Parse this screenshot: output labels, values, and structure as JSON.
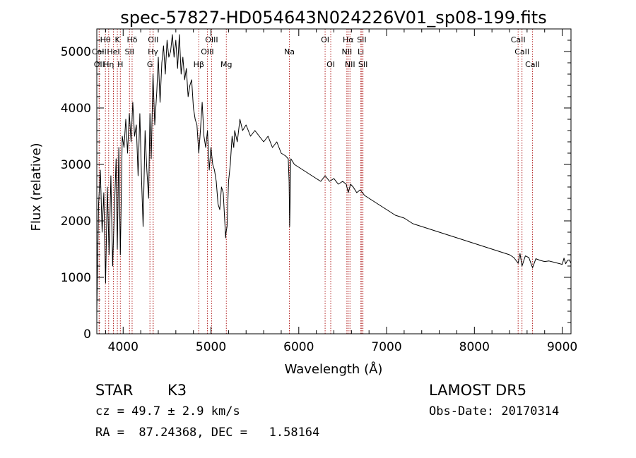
{
  "chart_data": {
    "type": "line",
    "title": "spec-57827-HD054643N024226V01_sp08-199.fits",
    "xlabel": "Wavelength (Å)",
    "ylabel": "Flux (relative)",
    "xlim": [
      3700,
      9100
    ],
    "ylim": [
      0,
      5400
    ],
    "xticks": [
      4000,
      5000,
      6000,
      7000,
      8000,
      9000
    ],
    "yticks": [
      0,
      1000,
      2000,
      3000,
      4000,
      5000
    ],
    "grid": false,
    "series": [
      {
        "x": [
          3700,
          3720,
          3740,
          3760,
          3780,
          3800,
          3820,
          3840,
          3860,
          3880,
          3900,
          3920,
          3933,
          3950,
          3968,
          3990,
          4010,
          4030,
          4050,
          4070,
          4090,
          4110,
          4130,
          4150,
          4170,
          4190,
          4210,
          4227,
          4250,
          4270,
          4290,
          4305,
          4320,
          4340,
          4360,
          4383,
          4400,
          4420,
          4440,
          4460,
          4480,
          4500,
          4520,
          4540,
          4560,
          4580,
          4600,
          4620,
          4640,
          4660,
          4680,
          4700,
          4720,
          4740,
          4760,
          4780,
          4800,
          4820,
          4840,
          4861,
          4880,
          4900,
          4920,
          4940,
          4960,
          4980,
          5000,
          5020,
          5040,
          5060,
          5080,
          5100,
          5120,
          5140,
          5167,
          5172,
          5183,
          5200,
          5220,
          5240,
          5260,
          5270,
          5300,
          5330,
          5360,
          5400,
          5450,
          5500,
          5550,
          5600,
          5650,
          5700,
          5750,
          5800,
          5850,
          5880,
          5890,
          5896,
          5910,
          5950,
          6000,
          6050,
          6100,
          6150,
          6200,
          6250,
          6300,
          6350,
          6400,
          6450,
          6500,
          6540,
          6563,
          6590,
          6620,
          6660,
          6700,
          6750,
          6800,
          6900,
          7000,
          7100,
          7200,
          7300,
          7400,
          7500,
          7600,
          7700,
          7800,
          7900,
          8000,
          8100,
          8200,
          8300,
          8400,
          8450,
          8498,
          8520,
          8542,
          8580,
          8620,
          8662,
          8700,
          8750,
          8800,
          8850,
          8900,
          8950,
          9000,
          9020,
          9040,
          9060,
          9080,
          9100
        ],
        "y": [
          400,
          2300,
          2900,
          1800,
          2500,
          900,
          2600,
          1400,
          2800,
          1200,
          2200,
          3100,
          1500,
          3300,
          1400,
          3500,
          3300,
          3800,
          3200,
          3900,
          3400,
          4100,
          3500,
          3700,
          2800,
          3900,
          2700,
          1900,
          3600,
          2900,
          2400,
          3900,
          3100,
          4600,
          3700,
          4300,
          4900,
          4100,
          4800,
          5100,
          4600,
          5200,
          4900,
          5000,
          5300,
          4900,
          5200,
          4700,
          5300,
          4600,
          4900,
          4500,
          4700,
          4200,
          4400,
          4500,
          4000,
          3800,
          3700,
          3200,
          3600,
          4100,
          3500,
          3300,
          3600,
          2900,
          3300,
          3000,
          2900,
          2700,
          2300,
          2200,
          2600,
          2500,
          1700,
          1800,
          1900,
          2700,
          3000,
          3500,
          3300,
          3600,
          3400,
          3800,
          3600,
          3700,
          3500,
          3600,
          3500,
          3400,
          3500,
          3300,
          3400,
          3200,
          3150,
          3100,
          2700,
          1900,
          3100,
          3000,
          2950,
          2900,
          2850,
          2800,
          2750,
          2700,
          2800,
          2700,
          2750,
          2650,
          2700,
          2650,
          2500,
          2650,
          2600,
          2500,
          2550,
          2450,
          2400,
          2300,
          2200,
          2100,
          2050,
          1950,
          1900,
          1850,
          1800,
          1750,
          1700,
          1650,
          1600,
          1550,
          1500,
          1450,
          1400,
          1350,
          1250,
          1420,
          1200,
          1380,
          1350,
          1170,
          1330,
          1300,
          1280,
          1290,
          1270,
          1250,
          1230,
          1340,
          1240,
          1300,
          1310,
          1250
        ]
      }
    ],
    "line_ids": [
      {
        "label": "Hθ",
        "x": 3798,
        "row": 0
      },
      {
        "label": "K",
        "x": 3934,
        "row": 0
      },
      {
        "label": "Hδ",
        "x": 4102,
        "row": 0
      },
      {
        "label": "OII",
        "x": 4342,
        "row": 0
      },
      {
        "label": "OIII",
        "x": 5007,
        "row": 0
      },
      {
        "label": "OI",
        "x": 6300,
        "row": 0
      },
      {
        "label": "Hα",
        "x": 6563,
        "row": 0
      },
      {
        "label": "SII",
        "x": 6717,
        "row": 0
      },
      {
        "label": "CaII",
        "x": 8498,
        "row": 0
      },
      {
        "label": "CaII",
        "x": 3727,
        "row": 1
      },
      {
        "label": "HeI",
        "x": 3889,
        "row": 1
      },
      {
        "label": "SII",
        "x": 4072,
        "row": 1
      },
      {
        "label": "Hγ",
        "x": 4340,
        "row": 1
      },
      {
        "label": "OIII",
        "x": 4959,
        "row": 1
      },
      {
        "label": "Na",
        "x": 5893,
        "row": 1
      },
      {
        "label": "NII",
        "x": 6548,
        "row": 1
      },
      {
        "label": "Li",
        "x": 6707,
        "row": 1
      },
      {
        "label": "CaII",
        "x": 8542,
        "row": 1
      },
      {
        "label": "OII",
        "x": 3727,
        "row": 2
      },
      {
        "label": "Hη",
        "x": 3835,
        "row": 2
      },
      {
        "label": "H",
        "x": 3968,
        "row": 2
      },
      {
        "label": "G",
        "x": 4305,
        "row": 2
      },
      {
        "label": "Hβ",
        "x": 4861,
        "row": 2
      },
      {
        "label": "Mg",
        "x": 5175,
        "row": 2
      },
      {
        "label": "OI",
        "x": 6364,
        "row": 2
      },
      {
        "label": "NII",
        "x": 6583,
        "row": 2
      },
      {
        "label": "SII",
        "x": 6731,
        "row": 2
      },
      {
        "label": "CaII",
        "x": 8662,
        "row": 2
      }
    ],
    "line_marker_color": "#b22222"
  },
  "info": {
    "object_type": "STAR",
    "subclass": "K3",
    "survey": "LAMOST DR5",
    "redshift": "cz = 49.7 ± 2.9 km/s",
    "obs_date": "Obs-Date: 20170314",
    "coords": "RA =  87.24368, DEC =   1.58164"
  }
}
